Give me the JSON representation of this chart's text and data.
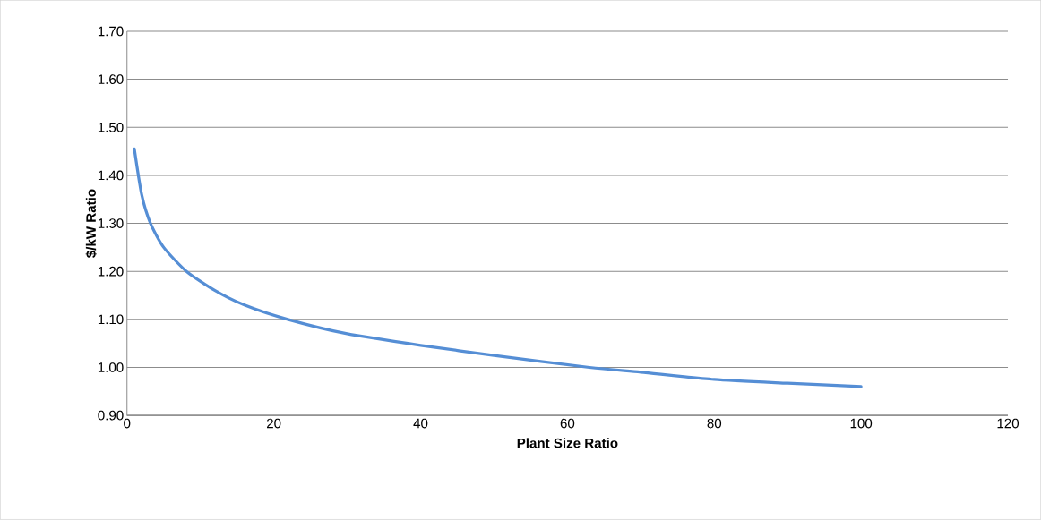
{
  "chart_data": {
    "type": "line",
    "xlabel": "Plant Size Ratio",
    "ylabel": "$/kW Ratio",
    "series": [
      {
        "color": "#558ed5",
        "x": [
          1,
          2,
          3.2,
          5,
          8.1,
          12,
          16,
          21.9,
          30,
          40,
          50,
          63,
          70,
          80,
          90,
          100
        ],
        "values": [
          1.455,
          1.36,
          1.3,
          1.25,
          1.2,
          1.16,
          1.13,
          1.1,
          1.07,
          1.046,
          1.025,
          1.0,
          0.99,
          0.975,
          0.967,
          0.96
        ]
      }
    ],
    "xlim": [
      0,
      120
    ],
    "xticks": [
      0,
      20,
      40,
      60,
      80,
      100,
      120
    ],
    "ylim": [
      0.9,
      1.7
    ],
    "yticks": [
      {
        "value": 0.9,
        "label": "0.90"
      },
      {
        "value": 1.0,
        "label": "1.00"
      },
      {
        "value": 1.1,
        "label": "1.10"
      },
      {
        "value": 1.2,
        "label": "1.20"
      },
      {
        "value": 1.3,
        "label": "1.30"
      },
      {
        "value": 1.4,
        "label": "1.40"
      },
      {
        "value": 1.5,
        "label": "1.50"
      },
      {
        "value": 1.6,
        "label": "1.60"
      },
      {
        "value": 1.7,
        "label": "1.70"
      }
    ],
    "grid": "y",
    "marker": "none",
    "line_style": "solid"
  }
}
